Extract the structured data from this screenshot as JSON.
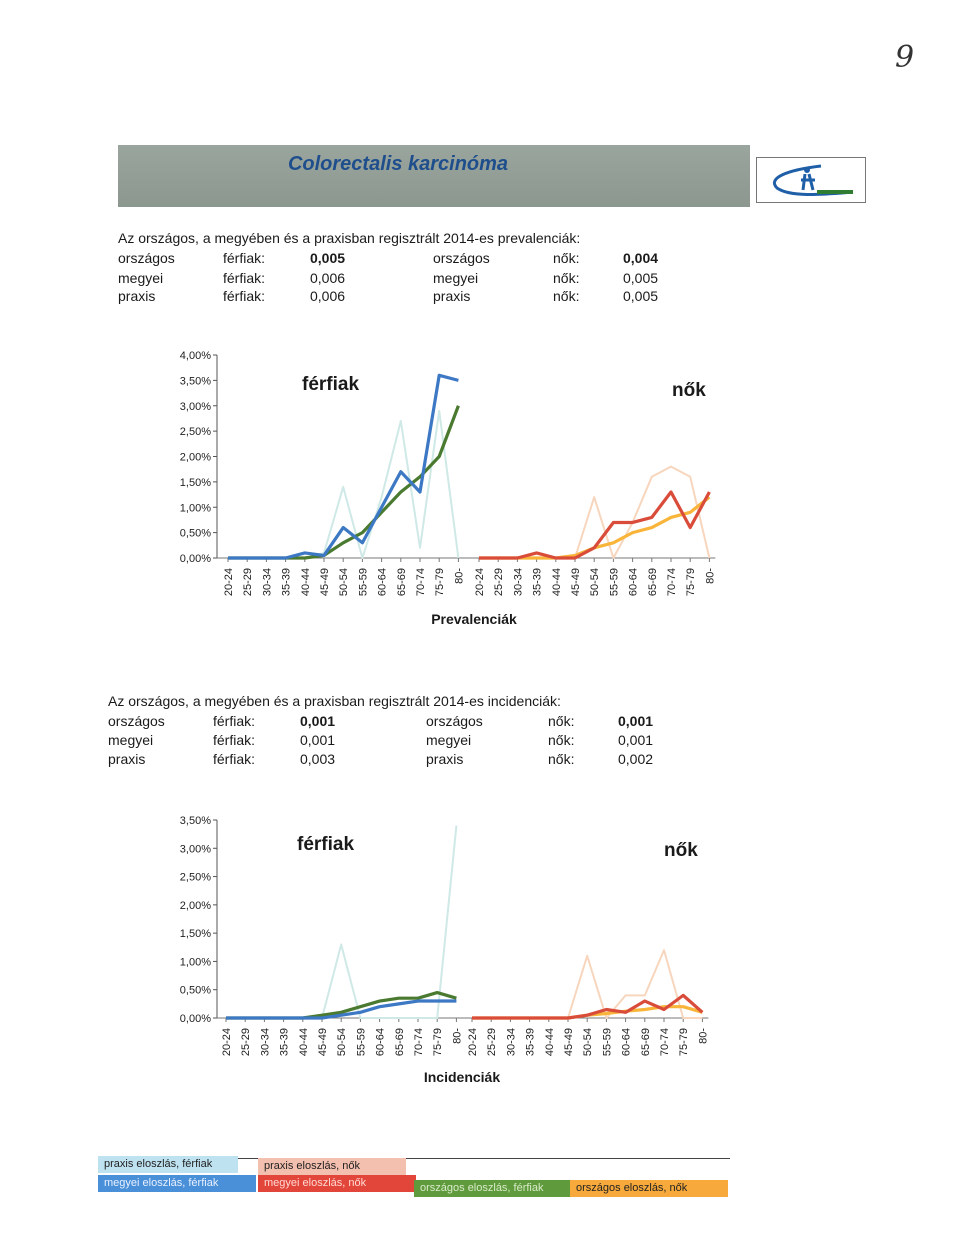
{
  "page_number": "9",
  "banner": {
    "title": "Colorectalis karcinóma",
    "logo_icon": "clinic-logo-icon"
  },
  "prevalence_stats": {
    "heading": "Az országos, a megyében és a praxisban regisztrált 2014-es prevalenciák:",
    "rows": [
      {
        "m_label": "országos",
        "m_sex": "férfiak:",
        "m_value": "0,005",
        "f_label": "országos",
        "f_sex": "nők:",
        "f_value": "0,004"
      },
      {
        "m_label": "megyei",
        "m_sex": "férfiak:",
        "m_value": "0,006",
        "f_label": "megyei",
        "f_sex": "nők:",
        "f_value": "0,005"
      },
      {
        "m_label": "praxis",
        "m_sex": "férfiak:",
        "m_value": "0,006",
        "f_label": "praxis",
        "f_sex": "nők:",
        "f_value": "0,005"
      }
    ]
  },
  "incidence_stats": {
    "heading": "Az országos, a megyében és a praxisban regisztrált 2014-es incidenciák:",
    "rows": [
      {
        "m_label": "országos",
        "m_sex": "férfiak:",
        "m_value": "0,001",
        "f_label": "országos",
        "f_sex": "nők:",
        "f_value": "0,001"
      },
      {
        "m_label": "megyei",
        "m_sex": "férfiak:",
        "m_value": "0,001",
        "f_label": "megyei",
        "f_sex": "nők:",
        "f_value": "0,001"
      },
      {
        "m_label": "praxis",
        "m_sex": "férfiak:",
        "m_value": "0,003",
        "f_label": "praxis",
        "f_sex": "nők:",
        "f_value": "0,002"
      }
    ]
  },
  "colors": {
    "praxis_m": "#cfe9e6",
    "megyei_m": "#3c78c4",
    "orszagos_m": "#4a7a30",
    "praxis_f": "#f7d6bd",
    "megyei_f": "#d94c3a",
    "orszagos_f": "#f8b53a"
  },
  "legend": [
    {
      "label": "praxis eloszlás, férfiak",
      "color": "#bfe2f0",
      "text": "#222"
    },
    {
      "label": "megyei eloszlás, férfiak",
      "color": "#4a90d9",
      "text": "#e8f0ff"
    },
    {
      "label": "praxis eloszlás, nők",
      "color": "#f3bfae",
      "text": "#222"
    },
    {
      "label": "megyei eloszlás, nők",
      "color": "#e2463a",
      "text": "#ffd9d3"
    },
    {
      "label": "országos eloszlás, férfiak",
      "color": "#5f9a3d",
      "text": "#d9ecc9"
    },
    {
      "label": "országos eloszlás, nők",
      "color": "#f7a93b",
      "text": "#222"
    }
  ],
  "chart_data": [
    {
      "type": "line",
      "title": "Prevalenciák",
      "ylim": [
        0,
        4
      ],
      "yticks": [
        "0,00%",
        "0,50%",
        "1,00%",
        "1,50%",
        "2,00%",
        "2,50%",
        "3,00%",
        "3,50%",
        "4,00%"
      ],
      "panel_labels": [
        "férfiak",
        "nők"
      ],
      "categories": [
        "20-24",
        "25-29",
        "30-34",
        "35-39",
        "40-44",
        "45-49",
        "50-54",
        "55-59",
        "60-64",
        "65-69",
        "70-74",
        "75-79",
        "80-"
      ],
      "series": [
        {
          "panel": 0,
          "color_key": "praxis_m",
          "values": [
            0,
            0,
            0,
            0,
            0,
            0.1,
            1.4,
            0,
            1.2,
            2.7,
            0.2,
            2.9,
            0
          ]
        },
        {
          "panel": 0,
          "color_key": "orszagos_m",
          "values": [
            0,
            0,
            0,
            0,
            0,
            0.05,
            0.3,
            0.5,
            0.9,
            1.3,
            1.6,
            2.0,
            3.0
          ]
        },
        {
          "panel": 0,
          "color_key": "megyei_m",
          "values": [
            0,
            0,
            0,
            0,
            0.1,
            0.05,
            0.6,
            0.3,
            1.0,
            1.7,
            1.3,
            3.6,
            3.5
          ]
        },
        {
          "panel": 1,
          "color_key": "praxis_f",
          "values": [
            0,
            0,
            0,
            0,
            0,
            0,
            1.2,
            0,
            0.7,
            1.6,
            1.8,
            1.6,
            0
          ]
        },
        {
          "panel": 1,
          "color_key": "orszagos_f",
          "values": [
            0,
            0,
            0,
            0,
            0,
            0.05,
            0.2,
            0.3,
            0.5,
            0.6,
            0.8,
            0.9,
            1.2
          ]
        },
        {
          "panel": 1,
          "color_key": "megyei_f",
          "values": [
            0,
            0,
            0,
            0.1,
            0,
            0,
            0.2,
            0.7,
            0.7,
            0.8,
            1.3,
            0.6,
            1.3
          ]
        }
      ]
    },
    {
      "type": "line",
      "title": "Incidenciák",
      "ylim": [
        0,
        3.5
      ],
      "yticks": [
        "0,00%",
        "0,50%",
        "1,00%",
        "1,50%",
        "2,00%",
        "2,50%",
        "3,00%",
        "3,50%"
      ],
      "panel_labels": [
        "férfiak",
        "nők"
      ],
      "categories": [
        "20-24",
        "25-29",
        "30-34",
        "35-39",
        "40-44",
        "45-49",
        "50-54",
        "55-59",
        "60-64",
        "65-69",
        "70-74",
        "75-79",
        "80-"
      ],
      "series": [
        {
          "panel": 0,
          "color_key": "praxis_m",
          "values": [
            0,
            0,
            0,
            0,
            0,
            0,
            1.3,
            0,
            0,
            0,
            0,
            0,
            3.4
          ]
        },
        {
          "panel": 0,
          "color_key": "orszagos_m",
          "values": [
            0,
            0,
            0,
            0,
            0,
            0.05,
            0.1,
            0.2,
            0.3,
            0.35,
            0.35,
            0.45,
            0.35
          ]
        },
        {
          "panel": 0,
          "color_key": "megyei_m",
          "values": [
            0,
            0,
            0,
            0,
            0,
            0,
            0.05,
            0.1,
            0.2,
            0.25,
            0.3,
            0.3,
            0.3
          ]
        },
        {
          "panel": 1,
          "color_key": "praxis_f",
          "values": [
            0,
            0,
            0,
            0,
            0,
            0,
            1.1,
            0,
            0.4,
            0.4,
            1.2,
            0,
            0
          ]
        },
        {
          "panel": 1,
          "color_key": "orszagos_f",
          "values": [
            0,
            0,
            0,
            0,
            0,
            0,
            0.05,
            0.08,
            0.12,
            0.15,
            0.2,
            0.2,
            0.1
          ]
        },
        {
          "panel": 1,
          "color_key": "megyei_f",
          "values": [
            0,
            0,
            0,
            0,
            0,
            0,
            0.05,
            0.15,
            0.1,
            0.3,
            0.15,
            0.4,
            0.1
          ]
        }
      ]
    }
  ]
}
